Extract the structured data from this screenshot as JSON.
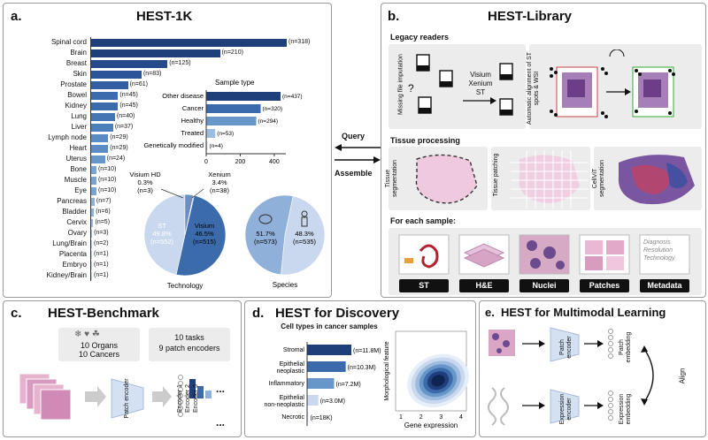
{
  "panel_a": {
    "label": "a.",
    "title": "HEST-1K",
    "organs": [
      {
        "name": "Spinal cord",
        "n": "(n=318)",
        "v": 318
      },
      {
        "name": "Brain",
        "n": "(n=210)",
        "v": 210
      },
      {
        "name": "Breast",
        "n": "(n=125)",
        "v": 125
      },
      {
        "name": "Skin",
        "n": "(n=83)",
        "v": 83
      },
      {
        "name": "Prostate",
        "n": "(n=61)",
        "v": 61
      },
      {
        "name": "Bowel",
        "n": "(n=45)",
        "v": 45
      },
      {
        "name": "Kidney",
        "n": "(n=45)",
        "v": 45
      },
      {
        "name": "Lung",
        "n": "(n=40)",
        "v": 40
      },
      {
        "name": "Liver",
        "n": "(n=37)",
        "v": 37
      },
      {
        "name": "Lymph node",
        "n": "(n=29)",
        "v": 29
      },
      {
        "name": "Heart",
        "n": "(n=29)",
        "v": 29
      },
      {
        "name": "Uterus",
        "n": "(n=24)",
        "v": 24
      },
      {
        "name": "Bone",
        "n": "(n=10)",
        "v": 10
      },
      {
        "name": "Muscle",
        "n": "(n=10)",
        "v": 10
      },
      {
        "name": "Eye",
        "n": "(n=10)",
        "v": 10
      },
      {
        "name": "Pancreas",
        "n": "(n=7)",
        "v": 7
      },
      {
        "name": "Bladder",
        "n": "(n=6)",
        "v": 6
      },
      {
        "name": "Cervix",
        "n": "(n=5)",
        "v": 5
      },
      {
        "name": "Ovary",
        "n": "(n=3)",
        "v": 3
      },
      {
        "name": "Lung/Brain",
        "n": "(n=2)",
        "v": 2
      },
      {
        "name": "Placenta",
        "n": "(n=1)",
        "v": 1
      },
      {
        "name": "Embryo",
        "n": "(n=1)",
        "v": 1
      },
      {
        "name": "Kidney/Brain",
        "n": "(n=1)",
        "v": 1
      }
    ],
    "sample_type": {
      "title": "Sample type",
      "items": [
        {
          "name": "Other disease",
          "n": "(n=437)",
          "v": 437
        },
        {
          "name": "Cancer",
          "n": "(n=320)",
          "v": 320
        },
        {
          "name": "Healthy",
          "n": "(n=294)",
          "v": 294
        },
        {
          "name": "Treated",
          "n": "(n=53)",
          "v": 53
        },
        {
          "name": "Genetically modified",
          "n": "(n=4)",
          "v": 4
        }
      ],
      "ticks": [
        "0",
        "200",
        "400"
      ]
    },
    "technology": {
      "label": "Technology",
      "slices": [
        {
          "name": "ST",
          "pct": "49.8%",
          "n": "(n=552)",
          "v": 49.8,
          "color": "#3b6bab"
        },
        {
          "name": "Visium",
          "pct": "46.5%",
          "n": "(n=515)",
          "v": 46.5,
          "color": "#c9d8ee"
        },
        {
          "name": "Xenium",
          "pct": "3.4%",
          "n": "(n=38)",
          "v": 3.4,
          "color": "#6b8fc2"
        },
        {
          "name": "Visium HD",
          "pct": "0.3%",
          "n": "(n=3)",
          "v": 0.3,
          "color": "#1f3f7a"
        }
      ]
    },
    "species": {
      "label": "Species",
      "slices": [
        {
          "name": "mouse",
          "pct": "51.7%",
          "n": "(n=573)",
          "v": 51.7,
          "color": "#8fb0d9"
        },
        {
          "name": "human",
          "pct": "48.3%",
          "n": "(n=535)",
          "v": 48.3,
          "color": "#c9d8ee"
        }
      ]
    }
  },
  "panel_b": {
    "label": "b.",
    "title": "HEST-Library",
    "legacy_readers": "Legacy readers",
    "missing_file": "Missing file imputation",
    "formats": "Visium\nXenium\nST",
    "formats_lines": [
      "Visium",
      "Xenium",
      "ST"
    ],
    "auto_align": "Automatic alignment of ST spots & WSI",
    "tissue_processing": "Tissue processing",
    "tissue_segmentation": "Tissue segmentation",
    "tissue_patching": "Tissue patching",
    "cellvit": "CellViT segmentation",
    "for_each": "For each sample:",
    "outputs": [
      "ST",
      "H&E",
      "Nuclei",
      "Patches",
      "Metadata"
    ],
    "metadata_items": [
      "Diagnosis",
      "Resolution",
      "Technology"
    ]
  },
  "arrows": {
    "query": "Query",
    "assemble": "Assemble"
  },
  "panel_c": {
    "label": "c.",
    "title": "HEST-Benchmark",
    "organs": "10 Organs",
    "cancers": "10 Cancers",
    "tasks": "10 tasks",
    "encoders": "9 patch encoders",
    "patch_encoder": "Patch encoder",
    "enc_labels": [
      "Encoder 1",
      "Encoder 2",
      "Encoder 3"
    ],
    "ellipsis": "..."
  },
  "panel_d": {
    "label": "d.",
    "title": "HEST for Discovery",
    "chart_data": {
      "type": "bar",
      "title": "Cell types in cancer samples",
      "categories": [
        "Stromal",
        "Epithelial neoplastic",
        "Inflammatory",
        "Epithelial non-neoplastic",
        "Necrotic"
      ],
      "values": [
        11.8,
        10.3,
        7.2,
        3.0,
        0.018
      ],
      "value_labels": [
        "(n=11.8M)",
        "(n=10.3M)",
        "(n=7.2M)",
        "(n=3.0M)",
        "(n=18K)"
      ]
    },
    "density": {
      "xlabel": "Gene expression",
      "ylabel": "Morphological feature",
      "xticks": [
        "1",
        "2",
        "3",
        "4"
      ]
    }
  },
  "panel_e": {
    "label": "e.",
    "title": "HEST for Multimodal Learning",
    "patch_encoder": "Patch encoder",
    "expression_encoder": "Expression encoder",
    "patch_embedding": "Patch embedding",
    "expression_embedding": "Expression embedding",
    "align": "Align"
  },
  "colors": {
    "dark_blue": "#1f3f7a",
    "mid_blue": "#3b6bab",
    "light_blue": "#8fb0d9",
    "pale_blue": "#c9d8ee",
    "he_pink": "#e9b8d2",
    "he_purple": "#8d4f96"
  }
}
